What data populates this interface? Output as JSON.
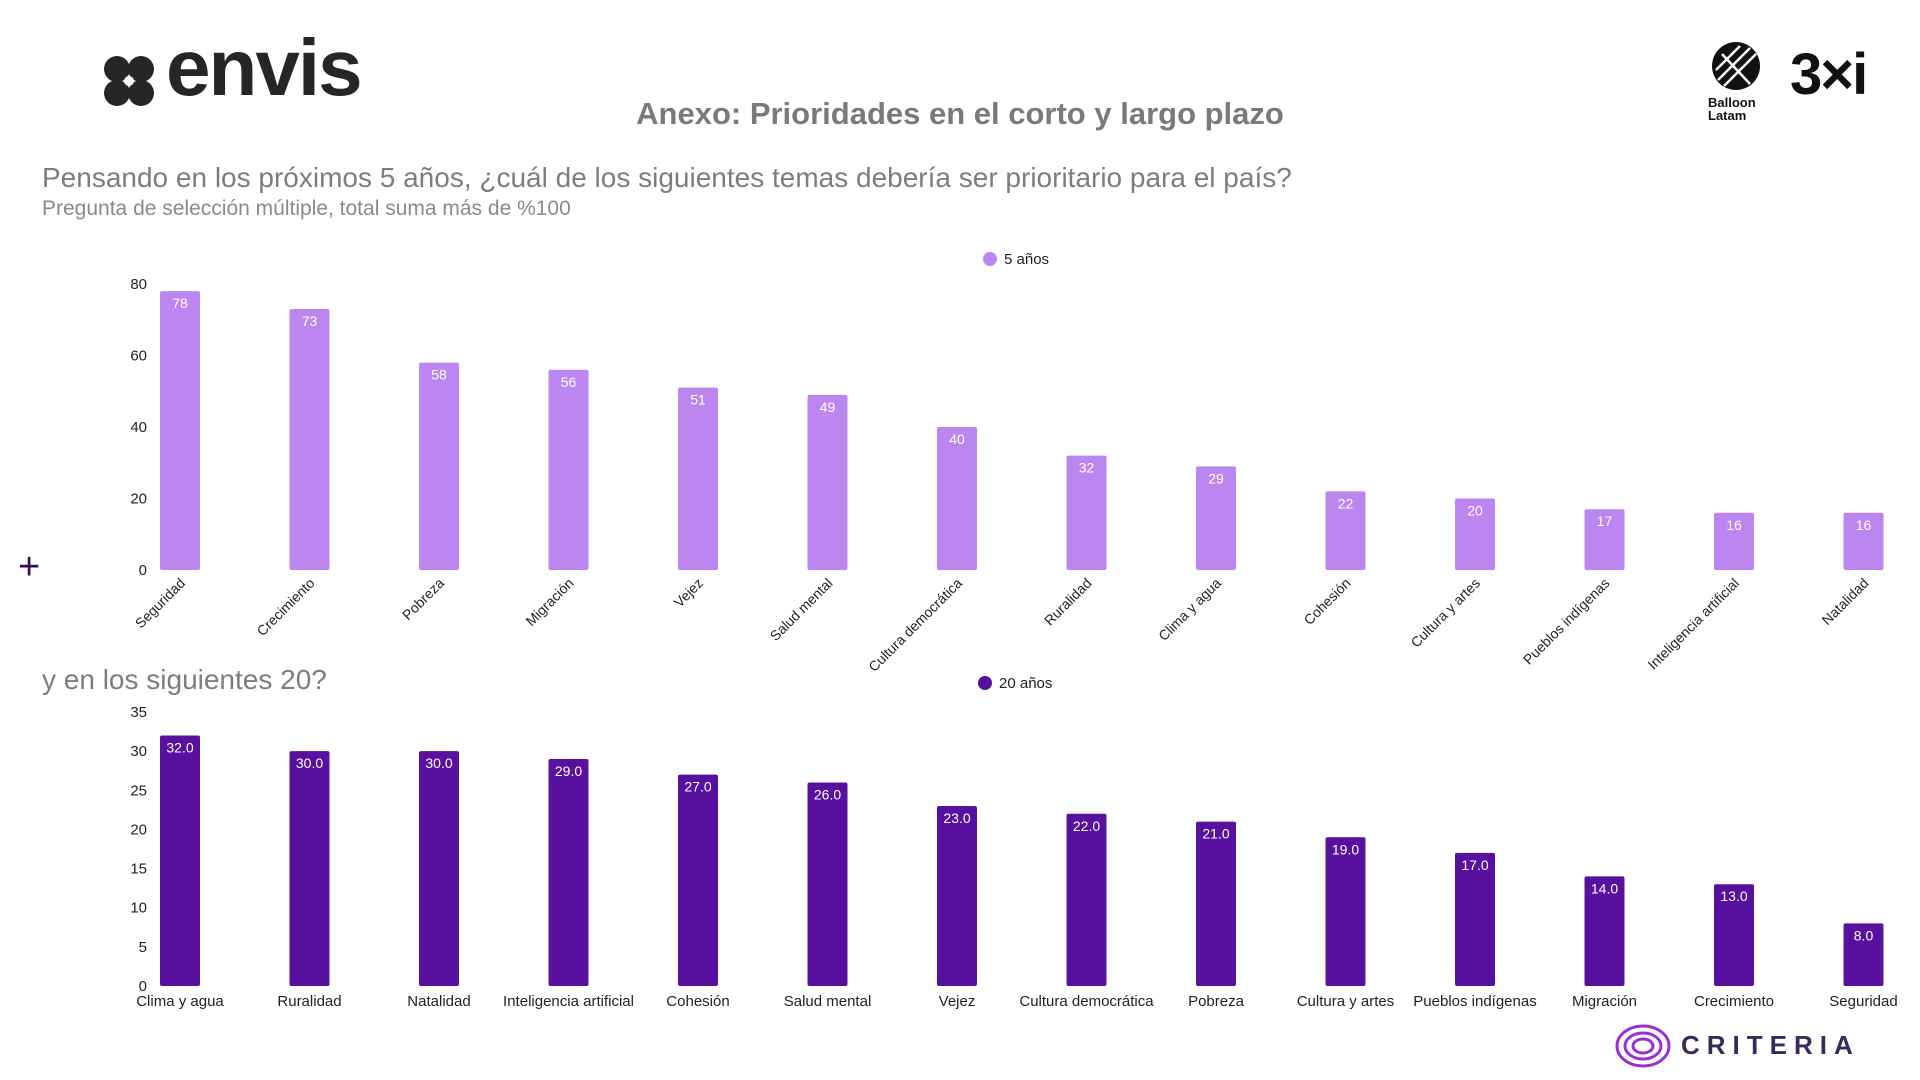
{
  "header": {
    "brand_left": "envis",
    "title": "Anexo: Prioridades en el corto y largo plazo",
    "brand_right_1": "Balloon Latam",
    "brand_right_2": "3×i",
    "footer_brand": "CRITERIA"
  },
  "question": "Pensando en los próximos 5 años, ¿cuál de los siguientes temas debería ser prioritario para el país?",
  "note": "Pregunta de selección múltiple, total suma más de %100",
  "question2": "y en los siguientes 20?",
  "plus_symbol": "+",
  "colors": {
    "short_term": "#bb86f0",
    "long_term": "#58109e"
  },
  "chart_data": [
    {
      "type": "bar",
      "categories": [
        "Seguridad",
        "Crecimiento",
        "Pobreza",
        "Migración",
        "Vejez",
        "Salud mental",
        "Cultura democrática",
        "Ruralidad",
        "Clima y agua",
        "Cohesión",
        "Cultura y artes",
        "Pueblos indígenas",
        "Inteligencia artificial",
        "Natalidad"
      ],
      "series": [
        {
          "name": "5 años",
          "values": [
            78,
            73,
            58,
            56,
            51,
            49,
            40,
            32,
            29,
            22,
            20,
            17,
            16,
            16
          ]
        }
      ],
      "value_labels": [
        "78",
        "73",
        "58",
        "56",
        "51",
        "49",
        "40",
        "32",
        "29",
        "22",
        "20",
        "17",
        "16",
        "16"
      ],
      "yticks": [
        "0",
        "20",
        "40",
        "60",
        "80"
      ],
      "ylim": [
        0,
        80
      ],
      "legend": "top-center",
      "xlabel_rotation": "rotated"
    },
    {
      "type": "bar",
      "categories": [
        "Clima y agua",
        "Ruralidad",
        "Natalidad",
        "Inteligencia artificial",
        "Cohesión",
        "Salud mental",
        "Vejez",
        "Cultura democrática",
        "Pobreza",
        "Cultura y artes",
        "Pueblos indígenas",
        "Migración",
        "Crecimiento",
        "Seguridad"
      ],
      "series": [
        {
          "name": "20 años",
          "values": [
            32,
            30,
            30,
            29,
            27,
            26,
            23,
            22,
            21,
            19,
            17,
            14,
            13,
            8
          ]
        }
      ],
      "value_labels": [
        "32.0",
        "30.0",
        "30.0",
        "29.0",
        "27.0",
        "26.0",
        "23.0",
        "22.0",
        "21.0",
        "19.0",
        "17.0",
        "14.0",
        "13.0",
        "8.0"
      ],
      "yticks": [
        "0",
        "5",
        "10",
        "15",
        "20",
        "25",
        "30",
        "35"
      ],
      "ylim": [
        0,
        35
      ],
      "legend": "top-center",
      "xlabel_rotation": "horizontal"
    }
  ]
}
